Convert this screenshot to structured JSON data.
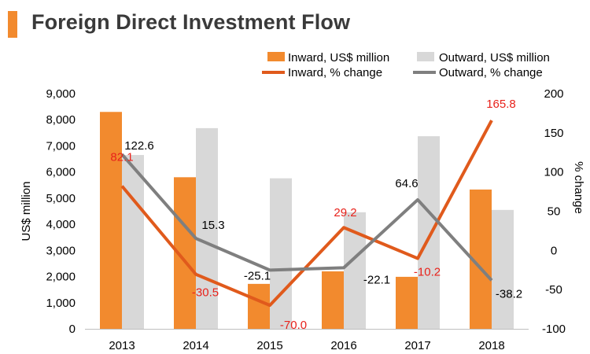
{
  "chart_data": {
    "type": "bar",
    "title": "Foreign Direct Investment Flow",
    "categories": [
      "2013",
      "2014",
      "2015",
      "2016",
      "2017",
      "2018"
    ],
    "series": [
      {
        "name": "Inward, US$ million",
        "kind": "bar",
        "axis": "left",
        "values": [
          8300,
          5800,
          1720,
          2200,
          1990,
          5330
        ],
        "color": "#f28a2e"
      },
      {
        "name": "Outward, US$ million",
        "kind": "bar",
        "axis": "left",
        "values": [
          6650,
          7680,
          5760,
          4460,
          7370,
          4550
        ],
        "color": "#d8d8d8"
      },
      {
        "name": "Inward, % change",
        "kind": "line",
        "axis": "right",
        "values": [
          82.1,
          -30.5,
          -70.0,
          29.2,
          -10.2,
          165.8
        ],
        "labels": [
          "82.1",
          "-30.5",
          "-70.0",
          "29.2",
          "-10.2",
          "165.8"
        ],
        "color": "#e05a1c",
        "label_color": "#e8221b"
      },
      {
        "name": "Outward, % change",
        "kind": "line",
        "axis": "right",
        "values": [
          122.6,
          15.3,
          -25.1,
          -22.1,
          64.6,
          -38.2
        ],
        "labels": [
          "122.6",
          "15.3",
          "-25.1",
          "-22.1",
          "64.6",
          "-38.2"
        ],
        "color": "#7f7f7f",
        "label_color": "#000000"
      }
    ],
    "ylabel": "US$ million",
    "ylim": [
      0,
      9000
    ],
    "yticks": [
      "0",
      "1,000",
      "2,000",
      "3,000",
      "4,000",
      "5,000",
      "6,000",
      "7,000",
      "8,000",
      "9,000"
    ],
    "y2label": "% change",
    "y2lim": [
      -100,
      200
    ],
    "y2ticks": [
      "-100",
      "-50",
      "0",
      "50",
      "100",
      "150",
      "200"
    ],
    "legend": "top-right",
    "grid": false
  }
}
